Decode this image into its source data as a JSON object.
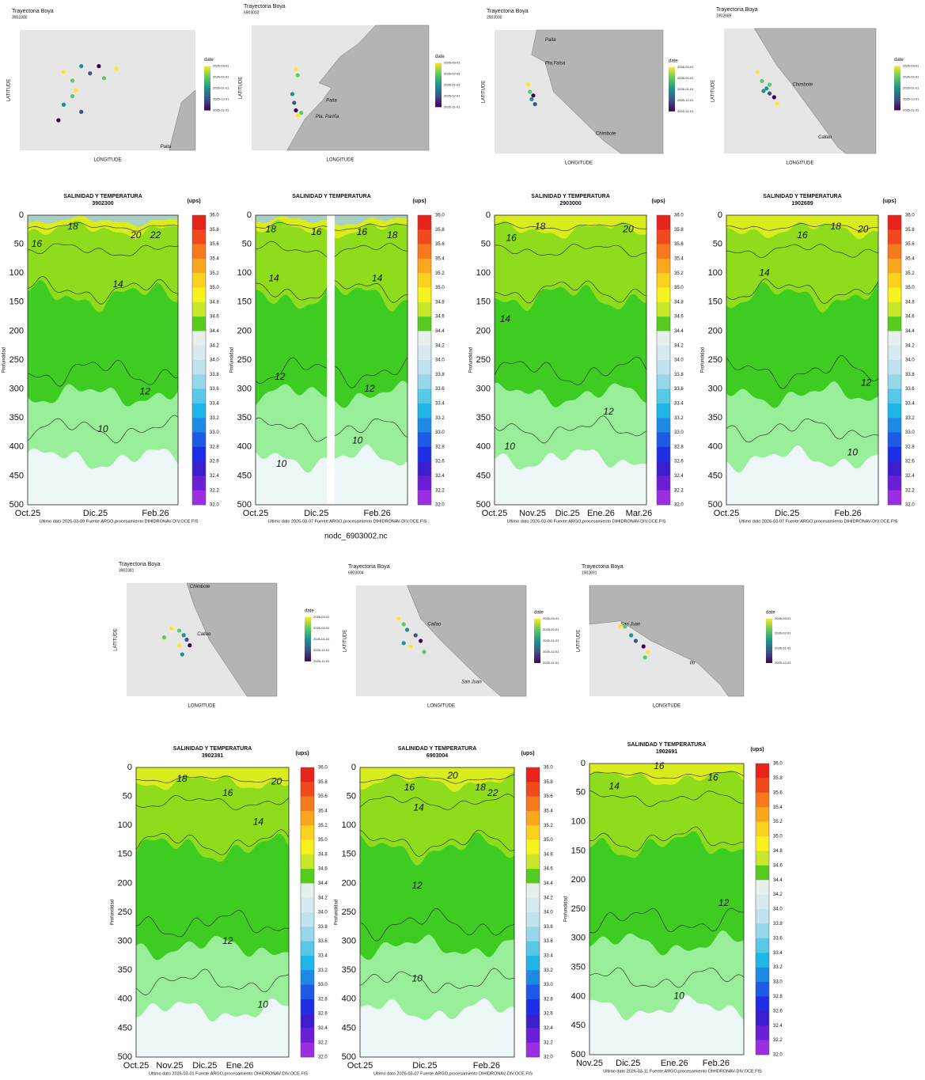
{
  "maps": [
    {
      "title": "Trayectoria Boya",
      "id": "3902300",
      "x_label": "LONGITUDE",
      "y_label": "LATITUDE",
      "legend_title": "date",
      "legend_labels": [
        "2026-03-01",
        "2026-02-01",
        "2026-01-01",
        "2025-12-01",
        "2025-11-01"
      ],
      "places": [
        "Paita"
      ]
    },
    {
      "title": "Trayectoria Boya",
      "id": "6903002",
      "x_label": "LONGITUDE",
      "y_label": "LATITUDE",
      "legend_title": "date",
      "legend_labels": [
        "2026-03-01",
        "2026-02-01",
        "2026-01-01",
        "2025-12-01",
        "2025-11-01"
      ],
      "places": [
        "Paita",
        "Pta. Pariña"
      ]
    },
    {
      "title": "Trayectoria Boya",
      "id": "2903000",
      "x_label": "LONGITUDE",
      "y_label": "LATITUDE",
      "legend_title": "date",
      "legend_labels": [
        "2026-03-01",
        "2026-02-01",
        "2026-01-01",
        "2025-12-01",
        "2025-11-01"
      ],
      "places": [
        "Paita",
        "Pta.Falsa",
        "Chimbote"
      ]
    },
    {
      "title": "Trayectoria Boya",
      "id": "1902689",
      "x_label": "LONGITUDE",
      "y_label": "LATITUDE",
      "legend_title": "date",
      "legend_labels": [
        "2026-03-01",
        "2026-02-01",
        "2026-01-01",
        "2025-12-01",
        "2025-11-01"
      ],
      "places": [
        "Chimbote",
        "Callao"
      ]
    },
    {
      "title": "Trayectoria Boya",
      "id": "3902381",
      "x_label": "LONGITUDE",
      "y_label": "LATITUDE",
      "legend_title": "date",
      "legend_labels": [
        "2026-03-01",
        "2026-02-01",
        "2026-01-01",
        "2025-12-01",
        "2025-11-01"
      ],
      "places": [
        "Chimbote",
        "Callao"
      ]
    },
    {
      "title": "Trayectoria Boya",
      "id": "6903004",
      "x_label": "LONGITUDE",
      "y_label": "LATITUDE",
      "legend_title": "date",
      "legend_labels": [
        "2026-03-01",
        "2026-02-01",
        "2026-01-01",
        "2025-12-01",
        "2025-11-01"
      ],
      "places": [
        "Callao",
        "San Juan"
      ]
    },
    {
      "title": "Trayectoria Boya",
      "id": "1902691",
      "x_label": "LONGITUDE",
      "y_label": "LATITUDE",
      "legend_title": "date",
      "legend_labels": [
        "2026-03-01",
        "2026-02-01",
        "2026-01-01",
        "2025-12-01"
      ],
      "places": [
        "San Juan",
        "Ilo"
      ]
    }
  ],
  "sections": [
    {
      "title": "SALINIDAD Y TEMPERATURA",
      "id": "3902300",
      "unit": "(ups)",
      "y_label": "Profundidad",
      "x_ticks": [
        "Oct.25",
        "Dic.25",
        "Feb.26"
      ],
      "contour_labels": [
        "18",
        "20",
        "22",
        "16",
        "14",
        "12",
        "10"
      ],
      "footer": "Ultimo dato 2026-03-09 Fuente:ARGO,procesamiento DIHIDRONAV-DIV.OCE.FIS"
    },
    {
      "title": "SALINIDAD Y TEMPERATURA",
      "unit": "(ups)",
      "y_label": "Profundidad",
      "x_ticks": [
        "Oct.25",
        "Dic.25",
        "Feb.26"
      ],
      "contour_labels": [
        "18",
        "16",
        "16",
        "18",
        "14",
        "14",
        "12",
        "12",
        "10",
        "10"
      ],
      "footer": "Ultimo dato 2026-03-07 Fuente:ARGO,procesamiento DIHIDRONAV-DIV.OCE.FIS"
    },
    {
      "title": "SALINIDAD Y TEMPERATURA",
      "id": "2903000",
      "unit": "(ups)",
      "y_label": "Profundidad",
      "x_ticks": [
        "Oct.25",
        "Nov.25",
        "Dic.25",
        "Ene.26",
        "Mar.26"
      ],
      "contour_labels": [
        "18",
        "20",
        "16",
        "14",
        "12",
        "10"
      ],
      "footer": "Ultimo dato 2026-03-06 Fuente:ARGO,procesamiento DIHIDRONAV-DIV.OCE.FIS"
    },
    {
      "title": "SALINIDAD Y TEMPERATURA",
      "id": "1902689",
      "unit": "(ups)",
      "y_label": "Profundidad",
      "x_ticks": [
        "Oct.25",
        "Dic.25",
        "Feb.26"
      ],
      "contour_labels": [
        "16",
        "18",
        "20",
        "14",
        "12",
        "10"
      ],
      "footer": "Ultimo dato 2026-03-07 Fuente:ARGO,procesamiento DIHIDRONAV-DIV.OCE.FIS"
    },
    {
      "title": "SALINIDAD Y TEMPERATURA",
      "id": "3902381",
      "unit": "(ups)",
      "y_label": "Profundidad",
      "x_ticks": [
        "Oct.25",
        "Nov.25",
        "Dic.25",
        "Ene.26"
      ],
      "contour_labels": [
        "18",
        "20",
        "16",
        "14",
        "12",
        "10"
      ],
      "footer": "Ultimo dato 2026-03-01 Fuente:ARGO,procesamiento DIHIDRONAV-DIV.OCE.FIS"
    },
    {
      "title": "SALINIDAD Y TEMPERATURA",
      "id": "6903004",
      "unit": "(ups)",
      "y_label": "Profundidad",
      "x_ticks": [
        "Oct.25",
        "Dic.25",
        "Feb.26"
      ],
      "contour_labels": [
        "20",
        "16",
        "18",
        "22",
        "14",
        "12",
        "10"
      ],
      "footer": "Ultimo dato 2026-03-07 Fuente:ARGO,procesamiento DIHIDRONAV-DIV.OCE.FIS"
    },
    {
      "title": "SALINIDAD Y TEMPERATURA",
      "id": "1902691",
      "unit": "(ups)",
      "y_label": "Profundidad",
      "x_ticks": [
        "Nov.25",
        "Dic.25",
        "Ene.26",
        "Feb.26"
      ],
      "contour_labels": [
        "16",
        "16",
        "14",
        "12",
        "10"
      ],
      "footer": "Ultimo dato 2026-03-11 Fuente:ARGO,procesamiento DIHIDRONAV-DIV.OCE.FIS"
    }
  ],
  "depth_ticks": [
    "0",
    "50",
    "100",
    "150",
    "200",
    "250",
    "300",
    "350",
    "400",
    "450",
    "500"
  ],
  "colorbar_labels": [
    "36.0",
    "35.8",
    "35.6",
    "35.4",
    "35.2",
    "35.0",
    "34.8",
    "34.6",
    "34.4",
    "34.2",
    "34.0",
    "33.8",
    "33.6",
    "33.4",
    "33.2",
    "33.0",
    "32.8",
    "32.6",
    "32.4",
    "32.2",
    "32.0"
  ],
  "file_name": "nodc_6903002.nc"
}
